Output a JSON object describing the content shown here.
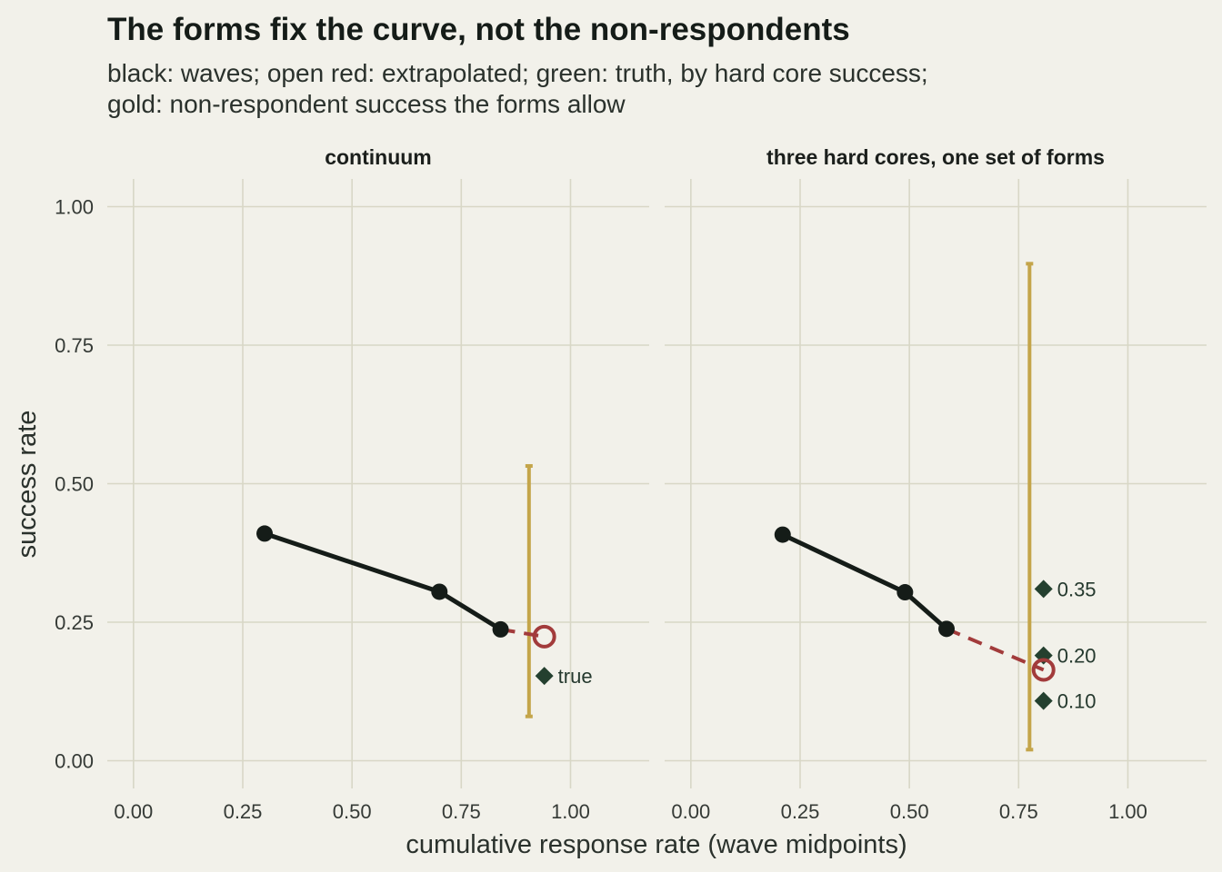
{
  "title": "The forms fix the curve, not the non-respondents",
  "subtitle": [
    "black: waves; open red: extrapolated; green: truth, by hard core success;",
    "gold: non-respondent success the forms allow"
  ],
  "xlabel": "cumulative response rate (wave midpoints)",
  "ylabel": "success rate",
  "colors": {
    "background": "#f2f1ea",
    "grid": "#d8d7c6",
    "waves": "#151c18",
    "extrapolated": "#a23b3b",
    "truth": "#24402f",
    "bounds": "#c4a54a"
  },
  "chart_data": [
    {
      "type": "scatter",
      "facet": "continuum",
      "xlim": [
        -0.06,
        1.18
      ],
      "ylim": [
        -0.05,
        1.05
      ],
      "x_ticks": [
        "0.00",
        "0.25",
        "0.50",
        "0.75",
        "1.00"
      ],
      "y_ticks": [
        "0.00",
        "0.25",
        "0.50",
        "0.75",
        "1.00"
      ],
      "waves": {
        "x": [
          0.3,
          0.7,
          0.84
        ],
        "y": [
          0.41,
          0.305,
          0.237
        ]
      },
      "extrapolated": {
        "x": 0.94,
        "y": 0.224
      },
      "bound": {
        "x": 0.905,
        "low": 0.08,
        "high": 0.532
      },
      "truth": [
        {
          "x": 0.94,
          "y": 0.153,
          "label": "true"
        }
      ]
    },
    {
      "type": "scatter",
      "facet": "three hard cores, one set of forms",
      "xlim": [
        -0.06,
        1.18
      ],
      "ylim": [
        -0.05,
        1.05
      ],
      "x_ticks": [
        "0.00",
        "0.25",
        "0.50",
        "0.75",
        "1.00"
      ],
      "y_ticks": [
        "0.00",
        "0.25",
        "0.50",
        "0.75",
        "1.00"
      ],
      "waves": {
        "x": [
          0.21,
          0.49,
          0.585
        ],
        "y": [
          0.408,
          0.304,
          0.238
        ]
      },
      "extrapolated": {
        "x": 0.807,
        "y": 0.164
      },
      "bound": {
        "x": 0.775,
        "low": 0.02,
        "high": 0.897
      },
      "truth": [
        {
          "x": 0.807,
          "y": 0.31,
          "label": "0.35"
        },
        {
          "x": 0.807,
          "y": 0.19,
          "label": "0.20"
        },
        {
          "x": 0.807,
          "y": 0.108,
          "label": "0.10"
        }
      ]
    }
  ]
}
